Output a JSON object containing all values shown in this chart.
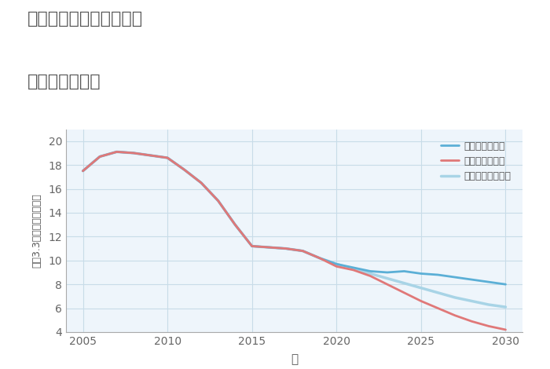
{
  "title_line1": "三重県伊賀市上野西町の",
  "title_line2": "土地の価格推移",
  "xlabel": "年",
  "ylabel": "坪（3.3㎡）単価（万円）",
  "xlim": [
    2004,
    2031
  ],
  "ylim": [
    4,
    21
  ],
  "yticks": [
    4,
    6,
    8,
    10,
    12,
    14,
    16,
    18,
    20
  ],
  "xticks": [
    2005,
    2010,
    2015,
    2020,
    2025,
    2030
  ],
  "background_color": "#eef5fb",
  "grid_color": "#c8dce8",
  "title_color": "#555555",
  "tick_color": "#666666",
  "label_color": "#555555",
  "good_scenario": {
    "label": "グッドシナリオ",
    "color": "#5bafd6",
    "x": [
      2005,
      2006,
      2007,
      2008,
      2009,
      2010,
      2011,
      2012,
      2013,
      2014,
      2015,
      2016,
      2017,
      2018,
      2019,
      2020,
      2021,
      2022,
      2023,
      2024,
      2025,
      2026,
      2027,
      2028,
      2029,
      2030
    ],
    "y": [
      17.5,
      18.7,
      19.1,
      19.0,
      18.8,
      18.6,
      17.6,
      16.5,
      15.0,
      13.0,
      11.2,
      11.1,
      11.0,
      10.8,
      10.2,
      9.7,
      9.4,
      9.1,
      9.0,
      9.1,
      8.9,
      8.8,
      8.6,
      8.4,
      8.2,
      8.0
    ],
    "linewidth": 2.0
  },
  "bad_scenario": {
    "label": "バッドシナリオ",
    "color": "#e07878",
    "x": [
      2005,
      2006,
      2007,
      2008,
      2009,
      2010,
      2011,
      2012,
      2013,
      2014,
      2015,
      2016,
      2017,
      2018,
      2019,
      2020,
      2021,
      2022,
      2023,
      2024,
      2025,
      2026,
      2027,
      2028,
      2029,
      2030
    ],
    "y": [
      17.5,
      18.7,
      19.1,
      19.0,
      18.8,
      18.6,
      17.6,
      16.5,
      15.0,
      13.0,
      11.2,
      11.1,
      11.0,
      10.8,
      10.2,
      9.5,
      9.2,
      8.7,
      8.0,
      7.3,
      6.6,
      6.0,
      5.4,
      4.9,
      4.5,
      4.2
    ],
    "linewidth": 2.0
  },
  "normal_scenario": {
    "label": "ノーマルシナリオ",
    "color": "#a8d4e6",
    "x": [
      2005,
      2006,
      2007,
      2008,
      2009,
      2010,
      2011,
      2012,
      2013,
      2014,
      2015,
      2016,
      2017,
      2018,
      2019,
      2020,
      2021,
      2022,
      2023,
      2024,
      2025,
      2026,
      2027,
      2028,
      2029,
      2030
    ],
    "y": [
      17.5,
      18.7,
      19.1,
      19.0,
      18.8,
      18.6,
      17.6,
      16.5,
      15.0,
      13.0,
      11.2,
      11.1,
      11.0,
      10.8,
      10.2,
      9.7,
      9.3,
      8.9,
      8.5,
      8.1,
      7.7,
      7.3,
      6.9,
      6.6,
      6.3,
      6.1
    ],
    "linewidth": 2.5
  }
}
